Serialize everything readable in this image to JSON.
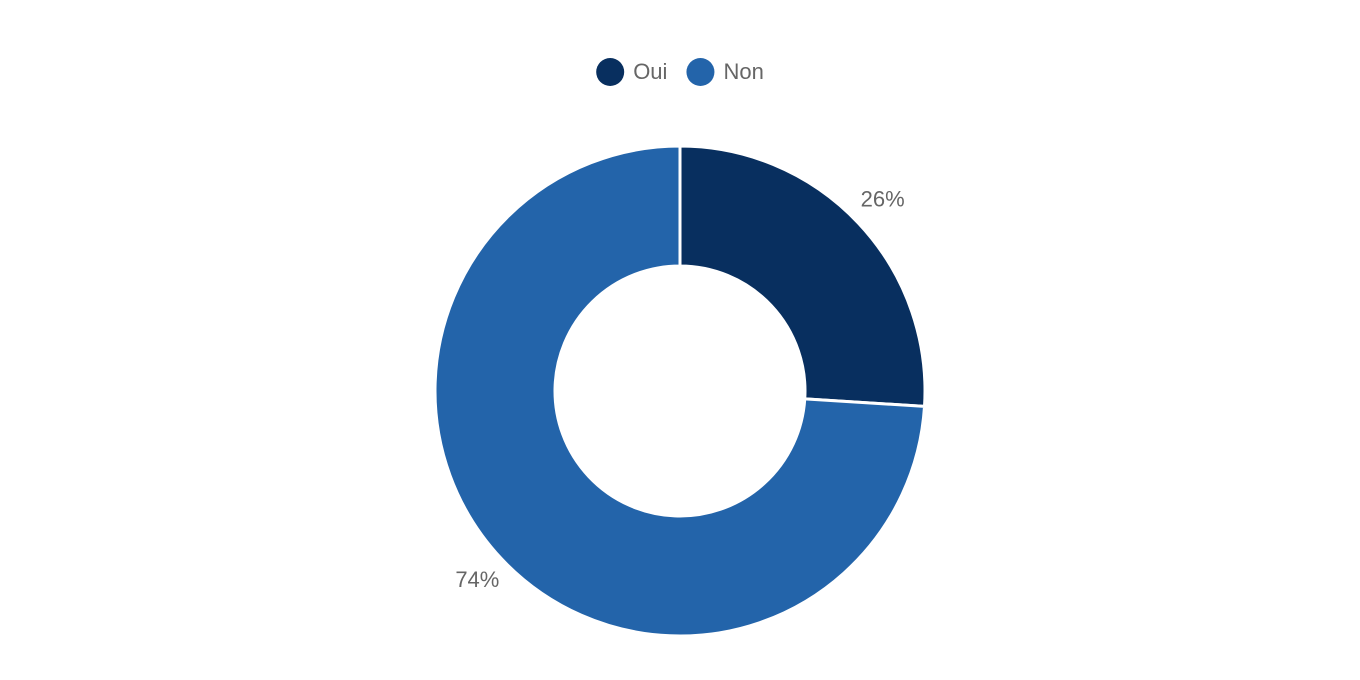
{
  "chart_data": {
    "type": "doughnut",
    "categories": [
      "Oui",
      "Non"
    ],
    "values": [
      26,
      74
    ],
    "value_labels": [
      "26%",
      "74%"
    ],
    "colors": [
      "#082f5f",
      "#2364aa"
    ],
    "legend": "top"
  }
}
